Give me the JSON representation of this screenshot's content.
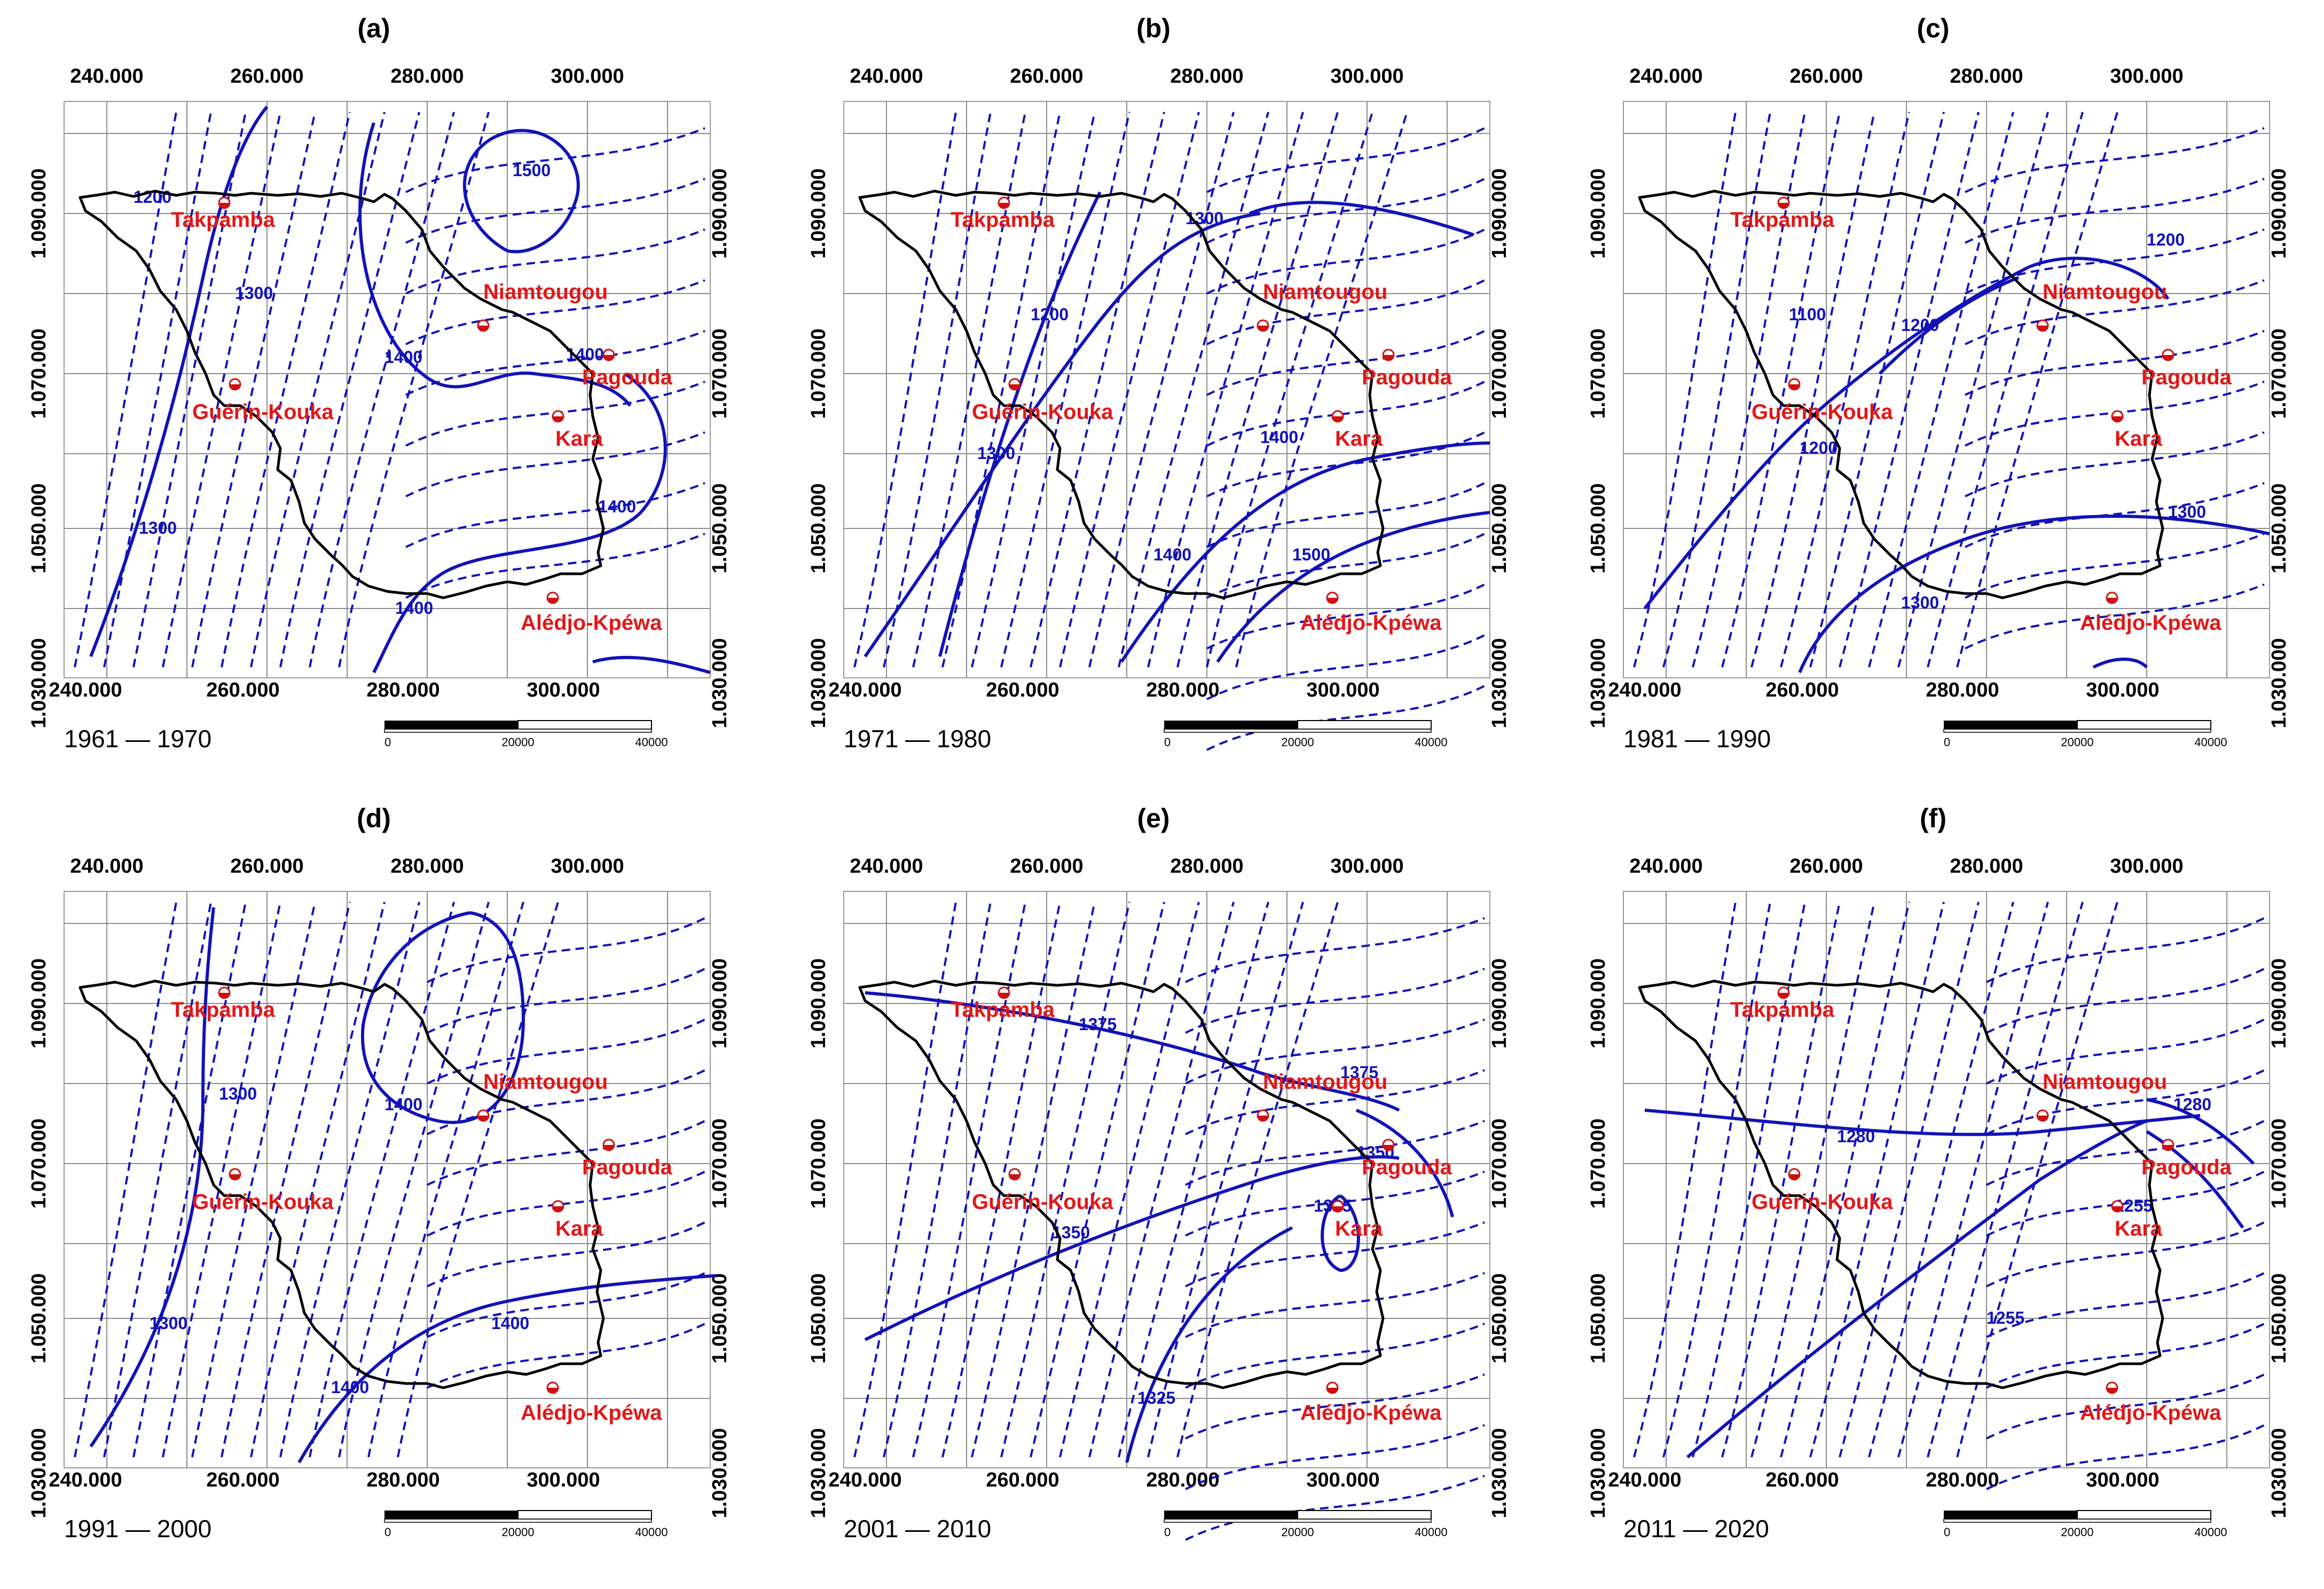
{
  "figure": {
    "x_ticks": [
      "240.000",
      "260.000",
      "280.000",
      "300.000"
    ],
    "y_ticks": [
      "1.090.000",
      "1.070.000",
      "1.050.000",
      "1.030.000"
    ],
    "scale_bar": [
      "0",
      "20000",
      "40000"
    ],
    "colors": {
      "isoline": "#1212b8",
      "station": "#e01818",
      "boundary": "#000000",
      "grid": "#8c8c8c"
    }
  },
  "stations": [
    "Takpamba",
    "Niamtougou",
    "Pagouda",
    "Guérin-Kouka",
    "Kara",
    "Alédjo-Kpéwa"
  ],
  "panels": [
    {
      "label": "(a)",
      "period": "1961 — 1970",
      "isoline_labels": [
        "1200",
        "1300",
        "1300",
        "1400",
        "1400",
        "1400",
        "1400",
        "1500"
      ]
    },
    {
      "label": "(b)",
      "period": "1971 — 1980",
      "isoline_labels": [
        "1200",
        "1300",
        "1300",
        "1400",
        "1400",
        "1500"
      ]
    },
    {
      "label": "(c)",
      "period": "1981 — 1990",
      "isoline_labels": [
        "1100",
        "1200",
        "1200",
        "1200",
        "1300",
        "1300"
      ]
    },
    {
      "label": "(d)",
      "period": "1991 — 2000",
      "isoline_labels": [
        "1300",
        "1300",
        "1400",
        "1400",
        "1400"
      ]
    },
    {
      "label": "(e)",
      "period": "2001 — 2010",
      "isoline_labels": [
        "1375",
        "1375",
        "1350",
        "1325",
        "1325",
        "1350"
      ]
    },
    {
      "label": "(f)",
      "period": "2011 — 2020",
      "isoline_labels": [
        "1280",
        "1280",
        "1255",
        "1255"
      ]
    }
  ]
}
